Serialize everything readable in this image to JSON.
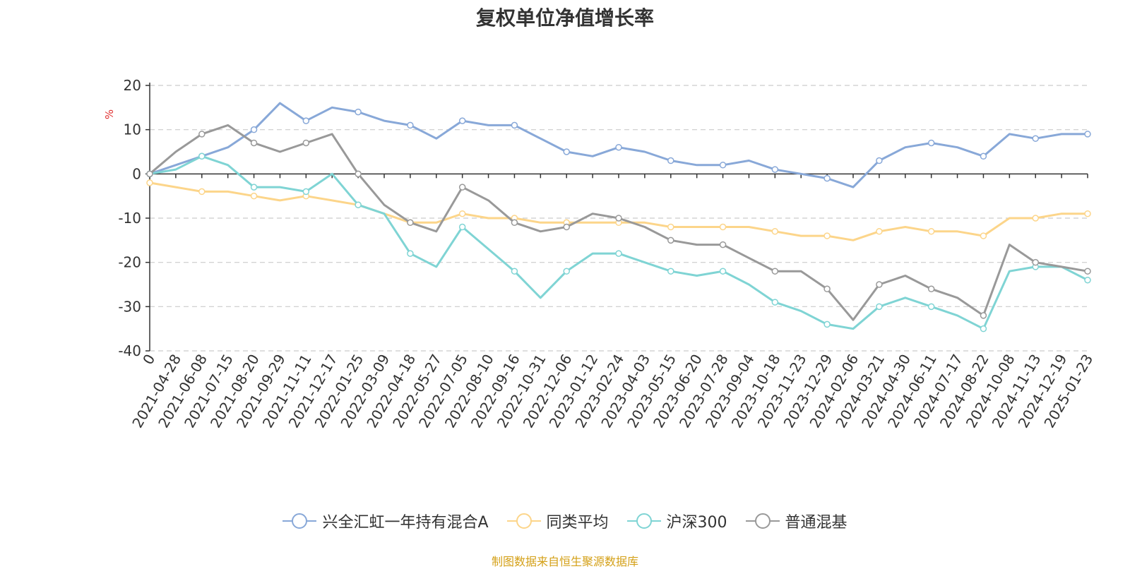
{
  "chart_data": {
    "type": "line",
    "title": "复权单位净值增长率",
    "ylabel": "%",
    "ylim": [
      -40,
      20
    ],
    "yticks": [
      "20",
      "10",
      "0",
      "-10",
      "-20",
      "-30",
      "-40"
    ],
    "categories": [
      "0",
      "2021-04-28",
      "2021-06-08",
      "2021-07-15",
      "2021-08-20",
      "2021-09-29",
      "2021-11-11",
      "2021-12-17",
      "2022-01-25",
      "2022-03-09",
      "2022-04-18",
      "2022-05-27",
      "2022-07-05",
      "2022-08-10",
      "2022-09-16",
      "2022-10-31",
      "2022-12-06",
      "2023-01-12",
      "2023-02-24",
      "2023-04-03",
      "2023-05-15",
      "2023-06-20",
      "2023-07-28",
      "2023-09-04",
      "2023-10-18",
      "2023-11-23",
      "2023-12-29",
      "2024-02-06",
      "2024-03-21",
      "2024-04-30",
      "2024-06-11",
      "2024-07-17",
      "2024-08-22",
      "2024-10-08",
      "2024-11-13",
      "2024-12-19",
      "2025-01-23"
    ],
    "series": [
      {
        "name": "兴全汇虹一年持有混合A",
        "color": "#88a8d8",
        "values": [
          0,
          2,
          4,
          6,
          10,
          16,
          12,
          15,
          14,
          12,
          11,
          8,
          12,
          11,
          11,
          8,
          5,
          4,
          6,
          5,
          3,
          2,
          2,
          3,
          1,
          0,
          -1,
          -3,
          3,
          6,
          7,
          6,
          4,
          9,
          8,
          9,
          9
        ]
      },
      {
        "name": "同类平均",
        "color": "#fcd58a",
        "values": [
          -2,
          -3,
          -4,
          -4,
          -5,
          -6,
          -5,
          -6,
          -7,
          -9,
          -11,
          -11,
          -9,
          -10,
          -10,
          -11,
          -11,
          -11,
          -11,
          -11,
          -12,
          -12,
          -12,
          -12,
          -13,
          -14,
          -14,
          -15,
          -13,
          -12,
          -13,
          -13,
          -14,
          -10,
          -10,
          -9,
          -9
        ]
      },
      {
        "name": "沪深300",
        "color": "#7fd4d4",
        "values": [
          0,
          1,
          4,
          2,
          -3,
          -3,
          -4,
          0,
          -7,
          -9,
          -18,
          -21,
          -12,
          -17,
          -22,
          -28,
          -22,
          -18,
          -18,
          -20,
          -22,
          -23,
          -22,
          -25,
          -29,
          -31,
          -34,
          -35,
          -30,
          -28,
          -30,
          -32,
          -35,
          -22,
          -21,
          -21,
          -24
        ]
      },
      {
        "name": "普通混基",
        "color": "#999999",
        "values": [
          0,
          5,
          9,
          11,
          7,
          5,
          7,
          9,
          0,
          -7,
          -11,
          -13,
          -3,
          -6,
          -11,
          -13,
          -12,
          -9,
          -10,
          -12,
          -15,
          -16,
          -16,
          -19,
          -22,
          -22,
          -26,
          -33,
          -25,
          -23,
          -26,
          -28,
          -32,
          -16,
          -20,
          -21,
          -22
        ]
      }
    ]
  },
  "source_text": "制图数据来自恒生聚源数据库"
}
